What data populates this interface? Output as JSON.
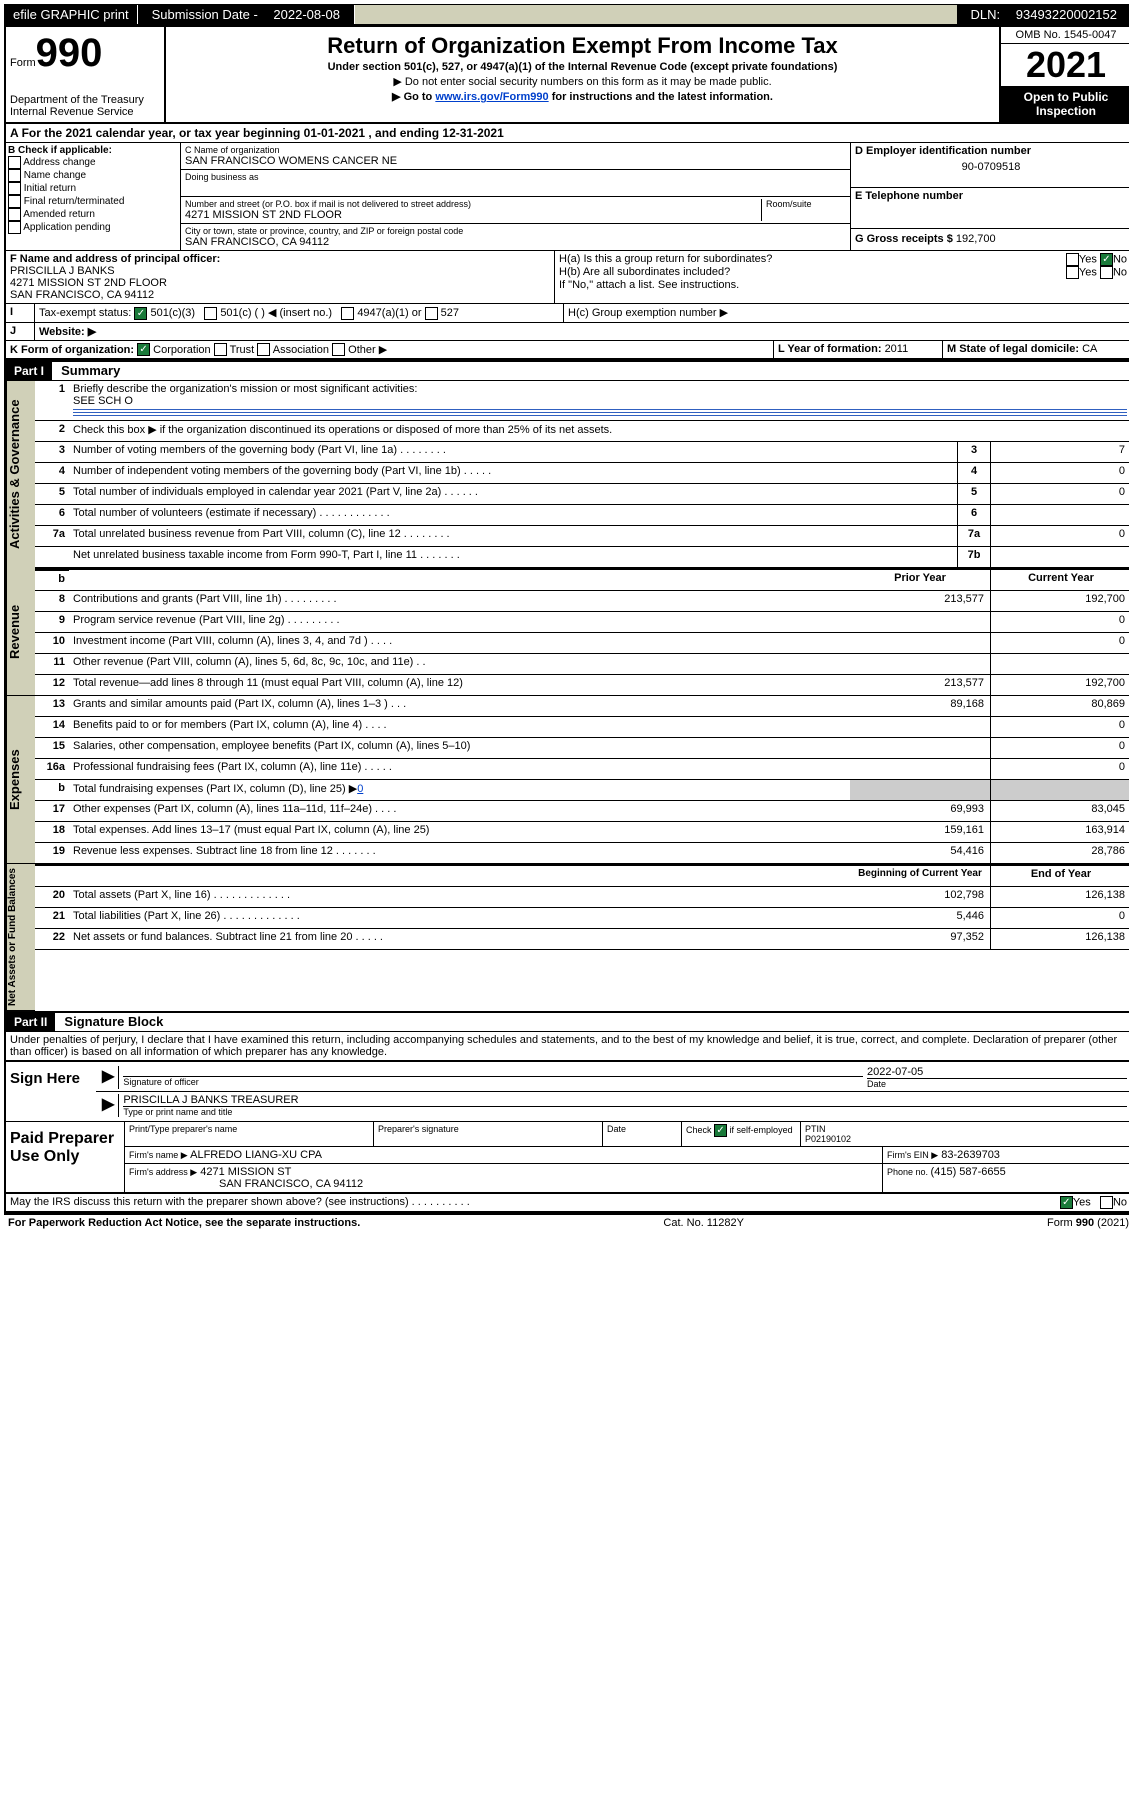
{
  "topbar": {
    "efile": "efile GRAPHIC print",
    "submission_label": "Submission Date - ",
    "submission_date": "2022-08-08",
    "dln_label": "DLN: ",
    "dln": "93493220002152"
  },
  "header": {
    "form_label": "Form",
    "form_number": "990",
    "dept": "Department of the Treasury",
    "irs": "Internal Revenue Service",
    "title": "Return of Organization Exempt From Income Tax",
    "sub1": "Under section 501(c), 527, or 4947(a)(1) of the Internal Revenue Code (except private foundations)",
    "sub2": "▶ Do not enter social security numbers on this form as it may be made public.",
    "sub3_pre": "▶ Go to ",
    "sub3_link": "www.irs.gov/Form990",
    "sub3_post": " for instructions and the latest information.",
    "omb": "OMB No. 1545-0047",
    "year": "2021",
    "open": "Open to Public Inspection"
  },
  "row_a": "For the 2021 calendar year, or tax year beginning 01-01-2021   , and ending 12-31-2021",
  "box_b": {
    "label": "B Check if applicable:",
    "items": [
      "Address change",
      "Name change",
      "Initial return",
      "Final return/terminated",
      "Amended return",
      "Application pending"
    ]
  },
  "box_c": {
    "name_label": "C Name of organization",
    "name": "SAN FRANCISCO WOMENS CANCER NE",
    "dba": "Doing business as",
    "street_label": "Number and street (or P.O. box if mail is not delivered to street address)",
    "room_label": "Room/suite",
    "street": "4271 MISSION ST 2ND FLOOR",
    "city_label": "City or town, state or province, country, and ZIP or foreign postal code",
    "city": "SAN FRANCISCO, CA  94112"
  },
  "box_d": {
    "label": "D Employer identification number",
    "value": "90-0709518"
  },
  "box_e": {
    "label": "E Telephone number",
    "value": ""
  },
  "box_g": {
    "label": "G Gross receipts $",
    "value": "192,700"
  },
  "box_f": {
    "label": "F  Name and address of principal officer:",
    "name": "PRISCILLA J BANKS",
    "line2": "4271 MISSION ST 2ND FLOOR",
    "line3": "SAN FRANCISCO, CA  94112"
  },
  "box_h": {
    "ha": "H(a)  Is this a group return for subordinates?",
    "hb": "H(b)  Are all subordinates included?",
    "note": "If \"No,\" attach a list. See instructions.",
    "hc": "H(c)  Group exemption number ▶",
    "yes": "Yes",
    "no": "No"
  },
  "row_i": {
    "label": "Tax-exempt status:",
    "opt1": "501(c)(3)",
    "opt2": "501(c) (  ) ◀ (insert no.)",
    "opt3": "4947(a)(1) or",
    "opt4": "527"
  },
  "row_j": {
    "label": "Website: ▶"
  },
  "row_k": {
    "label": "K Form of organization:",
    "opts": [
      "Corporation",
      "Trust",
      "Association",
      "Other ▶"
    ]
  },
  "row_l": {
    "label": "L Year of formation: ",
    "value": "2011"
  },
  "row_m": {
    "label": "M State of legal domicile: ",
    "value": "CA"
  },
  "part1": {
    "header": "Part I",
    "title": "Summary"
  },
  "summary": {
    "q1": "Briefly describe the organization's mission or most significant activities:",
    "q1v": "SEE SCH O",
    "q2": "Check this box ▶      if the organization discontinued its operations or disposed of more than 25% of its net assets.",
    "lines": [
      {
        "n": "3",
        "d": "Number of voting members of the governing body (Part VI, line 1a)   .    .    .    .    .    .    .    .",
        "c": "3",
        "v": "7"
      },
      {
        "n": "4",
        "d": "Number of independent voting members of the governing body (Part VI, line 1b)   .    .    .    .    .",
        "c": "4",
        "v": "0"
      },
      {
        "n": "5",
        "d": "Total number of individuals employed in calendar year 2021 (Part V, line 2a)   .    .    .    .    .    .",
        "c": "5",
        "v": "0"
      },
      {
        "n": "6",
        "d": "Total number of volunteers (estimate if necessary)   .    .    .    .    .    .    .    .    .    .    .    .",
        "c": "6",
        "v": ""
      },
      {
        "n": "7a",
        "d": "Total unrelated business revenue from Part VIII, column (C), line 12   .    .    .    .    .    .    .    .",
        "c": "7a",
        "v": "0"
      },
      {
        "n": "",
        "d": "Net unrelated business taxable income from Form 990-T, Part I, line 11   .    .    .    .    .    .    .",
        "c": "7b",
        "v": ""
      }
    ]
  },
  "dualheader": {
    "prior": "Prior Year",
    "current": "Current Year"
  },
  "revenue": [
    {
      "n": "8",
      "d": "Contributions and grants (Part VIII, line 1h)   .    .    .    .    .    .    .    .    .",
      "p": "213,577",
      "c": "192,700"
    },
    {
      "n": "9",
      "d": "Program service revenue (Part VIII, line 2g)   .    .    .    .    .    .    .    .    .",
      "p": "",
      "c": "0"
    },
    {
      "n": "10",
      "d": "Investment income (Part VIII, column (A), lines 3, 4, and 7d )   .    .    .    .",
      "p": "",
      "c": "0"
    },
    {
      "n": "11",
      "d": "Other revenue (Part VIII, column (A), lines 5, 6d, 8c, 9c, 10c, and 11e)  .    .",
      "p": "",
      "c": ""
    },
    {
      "n": "12",
      "d": "Total revenue—add lines 8 through 11 (must equal Part VIII, column (A), line 12)",
      "p": "213,577",
      "c": "192,700"
    }
  ],
  "expenses": [
    {
      "n": "13",
      "d": "Grants and similar amounts paid (Part IX, column (A), lines 1–3 )   .    .    .",
      "p": "89,168",
      "c": "80,869"
    },
    {
      "n": "14",
      "d": "Benefits paid to or for members (Part IX, column (A), line 4)   .    .    .    .",
      "p": "",
      "c": "0"
    },
    {
      "n": "15",
      "d": "Salaries, other compensation, employee benefits (Part IX, column (A), lines 5–10)",
      "p": "",
      "c": "0"
    },
    {
      "n": "16a",
      "d": "Professional fundraising fees (Part IX, column (A), line 11e)   .    .    .    .    .",
      "p": "",
      "c": "0"
    }
  ],
  "exp_b": {
    "d_pre": "Total fundraising expenses (Part IX, column (D), line 25) ▶",
    "d_link": "0"
  },
  "expenses2": [
    {
      "n": "17",
      "d": "Other expenses (Part IX, column (A), lines 11a–11d, 11f–24e)    .    .    .    .",
      "p": "69,993",
      "c": "83,045"
    },
    {
      "n": "18",
      "d": "Total expenses. Add lines 13–17 (must equal Part IX, column (A), line 25)",
      "p": "159,161",
      "c": "163,914"
    },
    {
      "n": "19",
      "d": "Revenue less expenses. Subtract line 18 from line 12   .    .    .    .    .    .    .",
      "p": "54,416",
      "c": "28,786"
    }
  ],
  "netheader": {
    "begin": "Beginning of Current Year",
    "end": "End of Year"
  },
  "netassets": [
    {
      "n": "20",
      "d": "Total assets (Part X, line 16)   .    .    .    .    .    .    .    .    .    .    .    .    .",
      "p": "102,798",
      "c": "126,138"
    },
    {
      "n": "21",
      "d": "Total liabilities (Part X, line 26)   .    .    .    .    .    .    .    .    .    .    .    .    .",
      "p": "5,446",
      "c": "0"
    },
    {
      "n": "22",
      "d": "Net assets or fund balances. Subtract line 21 from line 20   .    .    .    .    .",
      "p": "97,352",
      "c": "126,138"
    }
  ],
  "part2": {
    "header": "Part II",
    "title": "Signature Block"
  },
  "penalty": "Under penalties of perjury, I declare that I have examined this return, including accompanying schedules and statements, and to the best of my knowledge and belief, it is true, correct, and complete. Declaration of preparer (other than officer) is based on all information of which preparer has any knowledge.",
  "sign": {
    "label": "Sign Here",
    "sig_of": "Signature of officer",
    "date_label": "Date",
    "date": "2022-07-05",
    "name": "PRISCILLA J BANKS  TREASURER",
    "typeprint": "Type or print name and title"
  },
  "paid": {
    "label": "Paid Preparer Use Only",
    "h1": "Print/Type preparer's name",
    "h2": "Preparer's signature",
    "h3": "Date",
    "h4_pre": "Check",
    "h4_post": "if self-employed",
    "h5": "PTIN",
    "ptin": "P02190102",
    "firm_name_l": "Firm's name    ▶",
    "firm_name": "ALFREDO LIANG-XU CPA",
    "firm_ein_l": "Firm's EIN ▶",
    "firm_ein": "83-2639703",
    "firm_addr_l": "Firm's address ▶",
    "firm_addr1": "4271 MISSION ST",
    "firm_addr2": "SAN FRANCISCO, CA  94112",
    "phone_l": "Phone no. ",
    "phone": "(415) 587-6655"
  },
  "discuss": "May the IRS discuss this return with the preparer shown above? (see instructions)    .    .    .    .    .    .    .    .    .    .",
  "discuss_yes": "Yes",
  "discuss_no": "No",
  "footer": {
    "left": "For Paperwork Reduction Act Notice, see the separate instructions.",
    "center": "Cat. No. 11282Y",
    "right_pre": "Form ",
    "right_form": "990",
    "right_post": " (2021)"
  },
  "sides": {
    "gov": "Activities & Governance",
    "rev": "Revenue",
    "exp": "Expenses",
    "net": "Net Assets or Fund Balances"
  }
}
